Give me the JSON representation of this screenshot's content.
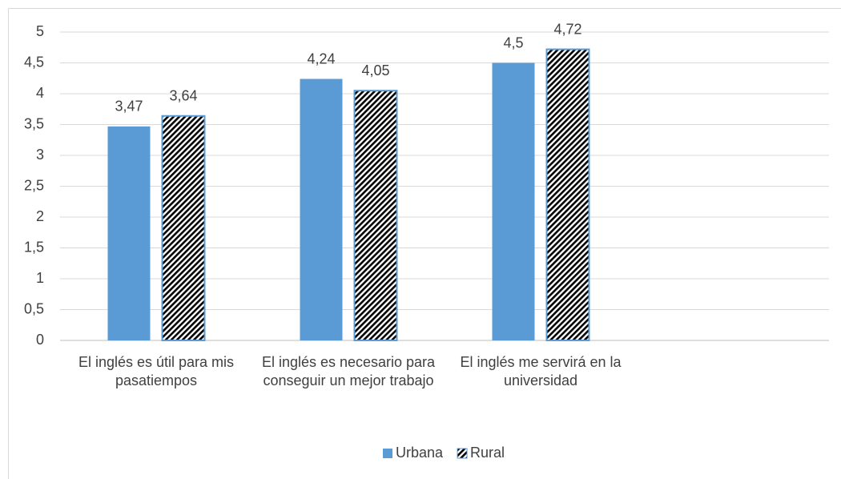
{
  "chart_data": {
    "type": "bar",
    "categories": [
      "El inglés es útil para mis pasatiempos",
      "El inglés es necesario para conseguir un mejor trabajo",
      "El inglés me servirá en la universidad",
      null
    ],
    "series": [
      {
        "name": "Urbana",
        "color": "#5b9bd5",
        "values": [
          3.47,
          4.24,
          4.5,
          null
        ],
        "value_labels": [
          "3,47",
          "4,24",
          "4,5",
          null
        ]
      },
      {
        "name": "Rural",
        "color": "#5b9bd5",
        "pattern": "diagonal-hatch",
        "values": [
          3.64,
          4.05,
          4.72,
          null
        ],
        "value_labels": [
          "3,64",
          "4,05",
          "4,72",
          null
        ]
      }
    ],
    "ylim": [
      0,
      5
    ],
    "yticks": [
      0,
      {
        "value": 0.5,
        "label": "0,5"
      },
      1,
      {
        "value": 1.5,
        "label": "1,5"
      },
      2,
      {
        "value": 2.5,
        "label": "2,5"
      },
      3,
      {
        "value": 3.5,
        "label": "3,5"
      },
      4,
      {
        "value": 4.5,
        "label": "4,5"
      },
      5
    ],
    "grid": true,
    "legend": "bottom"
  }
}
